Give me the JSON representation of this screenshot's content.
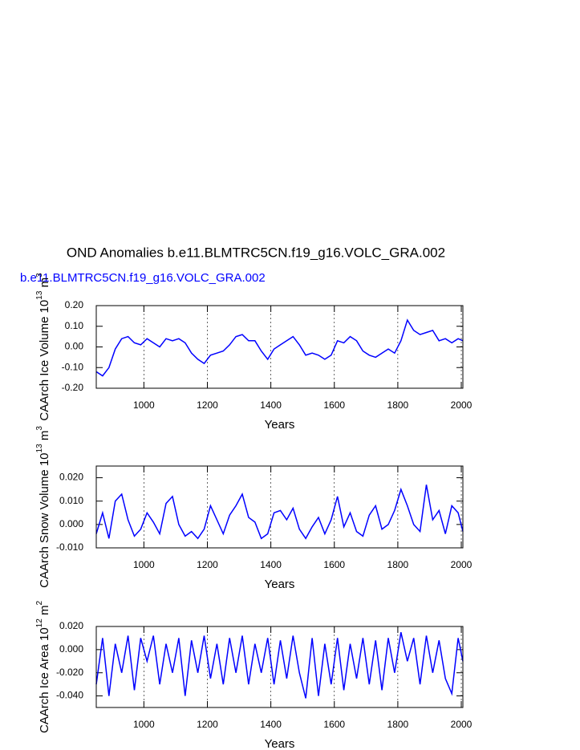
{
  "title": "OND Anomalies b.e11.BLMTRC5CN.f19_g16.VOLC_GRA.002",
  "subtitle": "b.e11.BLMTRC5CN.f19_g16.VOLC_GRA.002",
  "chart_data": [
    {
      "type": "line",
      "color": "#0000ff",
      "xlabel": "Years",
      "ylabel_parts": [
        "CAArch Ice Volume 10",
        "13",
        " m",
        "3"
      ],
      "xlim": [
        850,
        2005
      ],
      "ylim": [
        -0.2,
        0.2
      ],
      "xticks": [
        1000,
        1200,
        1400,
        1600,
        1800,
        2000
      ],
      "yticks": [
        {
          "value": -0.2,
          "label": "-0.20"
        },
        {
          "value": -0.1,
          "label": "-0.10"
        },
        {
          "value": 0,
          "label": "0.00"
        },
        {
          "value": 0.1,
          "label": "0.10"
        },
        {
          "value": 0.2,
          "label": "0.20"
        }
      ],
      "grid_x": true,
      "x": [
        850,
        870,
        890,
        910,
        930,
        950,
        970,
        990,
        1010,
        1030,
        1050,
        1070,
        1090,
        1110,
        1130,
        1150,
        1170,
        1190,
        1210,
        1230,
        1250,
        1270,
        1290,
        1310,
        1330,
        1350,
        1370,
        1390,
        1410,
        1430,
        1450,
        1470,
        1490,
        1510,
        1530,
        1550,
        1570,
        1590,
        1610,
        1630,
        1650,
        1670,
        1690,
        1710,
        1730,
        1750,
        1770,
        1790,
        1810,
        1830,
        1850,
        1870,
        1890,
        1910,
        1930,
        1950,
        1970,
        1990,
        2005
      ],
      "values": [
        -0.12,
        -0.14,
        -0.1,
        -0.01,
        0.04,
        0.05,
        0.02,
        0.01,
        0.04,
        0.02,
        0,
        0.04,
        0.03,
        0.04,
        0.02,
        -0.03,
        -0.06,
        -0.08,
        -0.04,
        -0.03,
        -0.02,
        0.01,
        0.05,
        0.06,
        0.03,
        0.03,
        -0.02,
        -0.06,
        -0.01,
        0.01,
        0.03,
        0.05,
        0.01,
        -0.04,
        -0.03,
        -0.04,
        -0.06,
        -0.04,
        0.03,
        0.02,
        0.05,
        0.03,
        -0.02,
        -0.04,
        -0.05,
        -0.03,
        -0.01,
        -0.03,
        0.03,
        0.13,
        0.08,
        0.06,
        0.07,
        0.08,
        0.03,
        0.04,
        0.02,
        0.04,
        0.03
      ]
    },
    {
      "type": "line",
      "color": "#0000ff",
      "xlabel": "Years",
      "ylabel_parts": [
        "CAArch Snow Volume 10",
        "13",
        " m",
        "3"
      ],
      "xlim": [
        850,
        2005
      ],
      "ylim": [
        -0.01,
        0.025
      ],
      "xticks": [
        1000,
        1200,
        1400,
        1600,
        1800,
        2000
      ],
      "yticks": [
        {
          "value": -0.01,
          "label": "-0.010"
        },
        {
          "value": 0,
          "label": "0.000"
        },
        {
          "value": 0.01,
          "label": "0.010"
        },
        {
          "value": 0.02,
          "label": "0.020"
        }
      ],
      "grid_x": true,
      "x": [
        850,
        870,
        890,
        910,
        930,
        950,
        970,
        990,
        1010,
        1030,
        1050,
        1070,
        1090,
        1110,
        1130,
        1150,
        1170,
        1190,
        1210,
        1230,
        1250,
        1270,
        1290,
        1310,
        1330,
        1350,
        1370,
        1390,
        1410,
        1430,
        1450,
        1470,
        1490,
        1510,
        1530,
        1550,
        1570,
        1590,
        1610,
        1630,
        1650,
        1670,
        1690,
        1710,
        1730,
        1750,
        1770,
        1790,
        1810,
        1830,
        1850,
        1870,
        1890,
        1910,
        1930,
        1950,
        1970,
        1990,
        2005
      ],
      "values": [
        -0.004,
        0.005,
        -0.006,
        0.01,
        0.013,
        0.002,
        -0.005,
        -0.002,
        0.005,
        0.001,
        -0.004,
        0.009,
        0.012,
        0,
        -0.005,
        -0.003,
        -0.006,
        -0.002,
        0.008,
        0.002,
        -0.004,
        0.004,
        0.008,
        0.013,
        0.003,
        0.001,
        -0.006,
        -0.004,
        0.005,
        0.006,
        0.002,
        0.007,
        -0.002,
        -0.006,
        -0.001,
        0.003,
        -0.004,
        0.002,
        0.012,
        -0.001,
        0.005,
        -0.003,
        -0.005,
        0.004,
        0.008,
        -0.002,
        0,
        0.006,
        0.015,
        0.008,
        0,
        -0.003,
        0.017,
        0.002,
        0.006,
        -0.004,
        0.008,
        0.005,
        -0.003
      ]
    },
    {
      "type": "line",
      "color": "#0000ff",
      "xlabel": "Years",
      "ylabel_parts": [
        "CAArch Ice Area 10",
        "12",
        " m",
        "2"
      ],
      "xlim": [
        850,
        2005
      ],
      "ylim": [
        -0.05,
        0.02
      ],
      "xticks": [
        1000,
        1200,
        1400,
        1600,
        1800,
        2000
      ],
      "yticks": [
        {
          "value": -0.04,
          "label": "-0.040"
        },
        {
          "value": -0.02,
          "label": "-0.020"
        },
        {
          "value": 0,
          "label": "0.000"
        },
        {
          "value": 0.02,
          "label": "0.020"
        }
      ],
      "grid_x": true,
      "x": [
        850,
        870,
        890,
        910,
        930,
        950,
        970,
        990,
        1010,
        1030,
        1050,
        1070,
        1090,
        1110,
        1130,
        1150,
        1170,
        1190,
        1210,
        1230,
        1250,
        1270,
        1290,
        1310,
        1330,
        1350,
        1370,
        1390,
        1410,
        1430,
        1450,
        1470,
        1490,
        1510,
        1530,
        1550,
        1570,
        1590,
        1610,
        1630,
        1650,
        1670,
        1690,
        1710,
        1730,
        1750,
        1770,
        1790,
        1810,
        1830,
        1850,
        1870,
        1890,
        1910,
        1930,
        1950,
        1970,
        1990,
        2005
      ],
      "values": [
        -0.03,
        0.01,
        -0.04,
        0.005,
        -0.02,
        0.012,
        -0.035,
        0.01,
        -0.01,
        0.012,
        -0.03,
        0.005,
        -0.02,
        0.01,
        -0.04,
        0.008,
        -0.02,
        0.012,
        -0.025,
        0.005,
        -0.03,
        0.01,
        -0.02,
        0.012,
        -0.03,
        0.005,
        -0.02,
        0.01,
        -0.03,
        0.008,
        -0.025,
        0.012,
        -0.02,
        -0.042,
        0.01,
        -0.04,
        0.005,
        -0.03,
        0.01,
        -0.035,
        0.005,
        -0.025,
        0.01,
        -0.03,
        0.008,
        -0.035,
        0.01,
        -0.02,
        0.015,
        -0.01,
        0.01,
        -0.03,
        0.012,
        -0.02,
        0.008,
        -0.025,
        -0.038,
        0.01,
        -0.01
      ]
    }
  ]
}
